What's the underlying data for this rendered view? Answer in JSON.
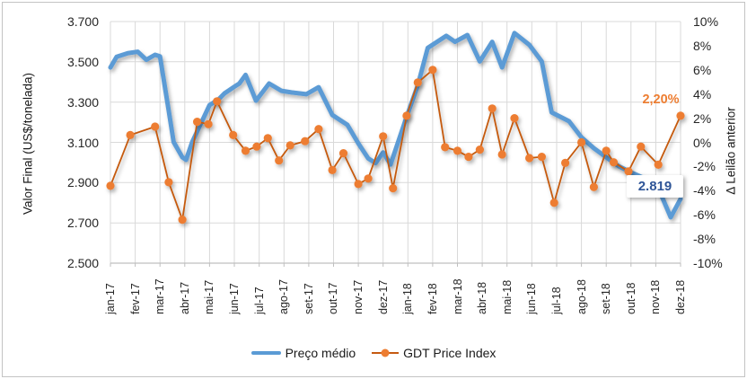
{
  "chart_data": {
    "type": "line",
    "title": "",
    "xlabel": "",
    "ylabel_left": "Valor Final (US$/tonelada)",
    "ylabel_right": "Δ Leilão anterior",
    "x_unit": "month index (0 = jan-17, fractional values = intra-month auctions)",
    "x_categories": [
      "jan-17",
      "fev-17",
      "mar-17",
      "abr-17",
      "mai-17",
      "jun-17",
      "jul-17",
      "ago-17",
      "set-17",
      "out-17",
      "nov-17",
      "dez-17",
      "jan-18",
      "fev-18",
      "mar-18",
      "abr-18",
      "mai-18",
      "jun-18",
      "jul-18",
      "ago-18",
      "set-18",
      "out-18",
      "nov-18",
      "dez-18"
    ],
    "left_axis": {
      "labels": [
        "3.700",
        "3.500",
        "3.300",
        "3.100",
        "2.900",
        "2.700",
        "2.500"
      ],
      "min": 2.5,
      "max": 3.7,
      "step": 0.2
    },
    "right_axis": {
      "labels": [
        "10%",
        "8%",
        "6%",
        "4%",
        "2%",
        "0%",
        "-2%",
        "-4%",
        "-6%",
        "-8%",
        "-10%"
      ],
      "min": -10,
      "max": 10,
      "step": 2
    },
    "grid": true,
    "legend_position": "bottom",
    "series": [
      {
        "name": "Preço médio",
        "axis": "left",
        "style": "thick-line",
        "points": [
          [
            0.0,
            3.472
          ],
          [
            0.25,
            3.525
          ],
          [
            0.7,
            3.543
          ],
          [
            1.1,
            3.55
          ],
          [
            1.45,
            3.51
          ],
          [
            1.8,
            3.535
          ],
          [
            2.0,
            3.527
          ],
          [
            2.35,
            3.258
          ],
          [
            2.55,
            3.102
          ],
          [
            2.9,
            3.026
          ],
          [
            3.05,
            3.013
          ],
          [
            3.3,
            3.102
          ],
          [
            4.0,
            3.285
          ],
          [
            4.35,
            3.312
          ],
          [
            4.6,
            3.343
          ],
          [
            5.0,
            3.376
          ],
          [
            5.2,
            3.392
          ],
          [
            5.45,
            3.435
          ],
          [
            5.87,
            3.307
          ],
          [
            6.4,
            3.392
          ],
          [
            6.9,
            3.356
          ],
          [
            7.3,
            3.348
          ],
          [
            7.9,
            3.339
          ],
          [
            8.4,
            3.374
          ],
          [
            8.95,
            3.236
          ],
          [
            9.56,
            3.187
          ],
          [
            10.0,
            3.095
          ],
          [
            10.4,
            3.02
          ],
          [
            10.7,
            2.997
          ],
          [
            11.0,
            3.05
          ],
          [
            11.3,
            2.99
          ],
          [
            11.95,
            3.227
          ],
          [
            12.4,
            3.383
          ],
          [
            12.8,
            3.569
          ],
          [
            13.55,
            3.629
          ],
          [
            13.9,
            3.599
          ],
          [
            14.4,
            3.633
          ],
          [
            14.9,
            3.502
          ],
          [
            15.4,
            3.599
          ],
          [
            15.8,
            3.472
          ],
          [
            16.3,
            3.643
          ],
          [
            16.9,
            3.584
          ],
          [
            17.4,
            3.502
          ],
          [
            17.8,
            3.249
          ],
          [
            18.5,
            3.205
          ],
          [
            19.0,
            3.125
          ],
          [
            19.5,
            3.071
          ],
          [
            20.0,
            3.026
          ],
          [
            20.5,
            2.982
          ],
          [
            21.0,
            2.951
          ],
          [
            21.5,
            2.924
          ],
          [
            22.0,
            2.902
          ],
          [
            22.6,
            2.728
          ],
          [
            23.0,
            2.819
          ]
        ]
      },
      {
        "name": "GDT Price Index",
        "axis": "right",
        "style": "line-with-markers",
        "points": [
          [
            0.0,
            -3.6
          ],
          [
            0.8,
            0.6
          ],
          [
            1.8,
            1.3
          ],
          [
            2.35,
            -3.3
          ],
          [
            2.9,
            -6.4
          ],
          [
            3.5,
            1.7
          ],
          [
            3.95,
            1.5
          ],
          [
            4.3,
            3.4
          ],
          [
            4.95,
            0.6
          ],
          [
            5.45,
            -0.7
          ],
          [
            5.9,
            -0.35
          ],
          [
            6.35,
            0.35
          ],
          [
            6.8,
            -1.5
          ],
          [
            7.25,
            -0.25
          ],
          [
            7.85,
            0.1
          ],
          [
            8.4,
            1.1
          ],
          [
            8.95,
            -2.3
          ],
          [
            9.4,
            -0.9
          ],
          [
            10.0,
            -3.45
          ],
          [
            10.4,
            -3.0
          ],
          [
            11.0,
            0.5
          ],
          [
            11.4,
            -3.8
          ],
          [
            11.95,
            2.2
          ],
          [
            12.4,
            4.95
          ],
          [
            13.0,
            6.0
          ],
          [
            13.5,
            -0.4
          ],
          [
            14.0,
            -0.7
          ],
          [
            14.45,
            -1.2
          ],
          [
            14.9,
            -0.6
          ],
          [
            15.4,
            2.8
          ],
          [
            15.8,
            -1.0
          ],
          [
            16.3,
            2.0
          ],
          [
            16.9,
            -1.3
          ],
          [
            17.4,
            -1.2
          ],
          [
            17.9,
            -5.0
          ],
          [
            18.35,
            -1.7
          ],
          [
            19.0,
            0.0
          ],
          [
            19.5,
            -3.7
          ],
          [
            20.0,
            -0.7
          ],
          [
            20.3,
            -1.65
          ],
          [
            20.9,
            -2.4
          ],
          [
            21.4,
            -0.35
          ],
          [
            22.1,
            -1.85
          ],
          [
            23.0,
            2.2
          ]
        ]
      }
    ],
    "annotations": {
      "gdt_last_label": "2,20%",
      "preco_last_label": "2.819"
    },
    "colors": {
      "blue": "#5B9BD5",
      "orange": "#ED7D31",
      "orange_line": "#C55A11",
      "gridline": "#D9D9D9",
      "axis_line": "#BFBFBF",
      "text": "#262626",
      "annotation_blue": "#2F5597"
    }
  }
}
